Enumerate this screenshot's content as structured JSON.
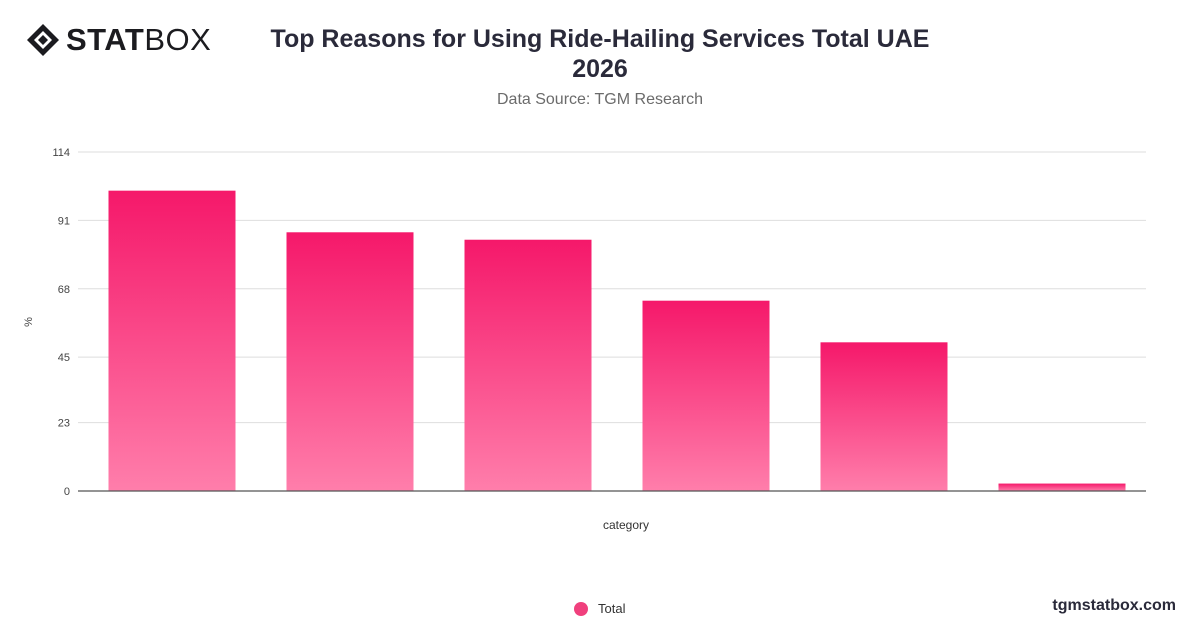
{
  "brand": {
    "logo_bold": "STAT",
    "logo_light": "BOX",
    "logo_icon": "diamond-logo-icon"
  },
  "header": {
    "title_line1": "Top Reasons for Using Ride-Hailing Services Total UAE",
    "title_line2": "2026",
    "subtitle": "Data Source: TGM Research"
  },
  "footer": {
    "site": "tgmstatbox.com"
  },
  "colors": {
    "bar_top": "#f5186a",
    "bar_bottom": "#ff7eab",
    "legend": "#f0407d"
  },
  "chart_data": {
    "type": "bar",
    "title": "Top Reasons for Using Ride-Hailing Services Total UAE 2026",
    "xlabel": "category",
    "ylabel": "%",
    "ylim": [
      0,
      114
    ],
    "yticks": [
      0,
      23,
      45,
      68,
      91,
      114
    ],
    "grid": true,
    "legend_position": "bottom",
    "series": [
      {
        "name": "Total",
        "values": [
          101,
          87,
          84.5,
          64,
          50,
          2.5
        ]
      }
    ]
  }
}
